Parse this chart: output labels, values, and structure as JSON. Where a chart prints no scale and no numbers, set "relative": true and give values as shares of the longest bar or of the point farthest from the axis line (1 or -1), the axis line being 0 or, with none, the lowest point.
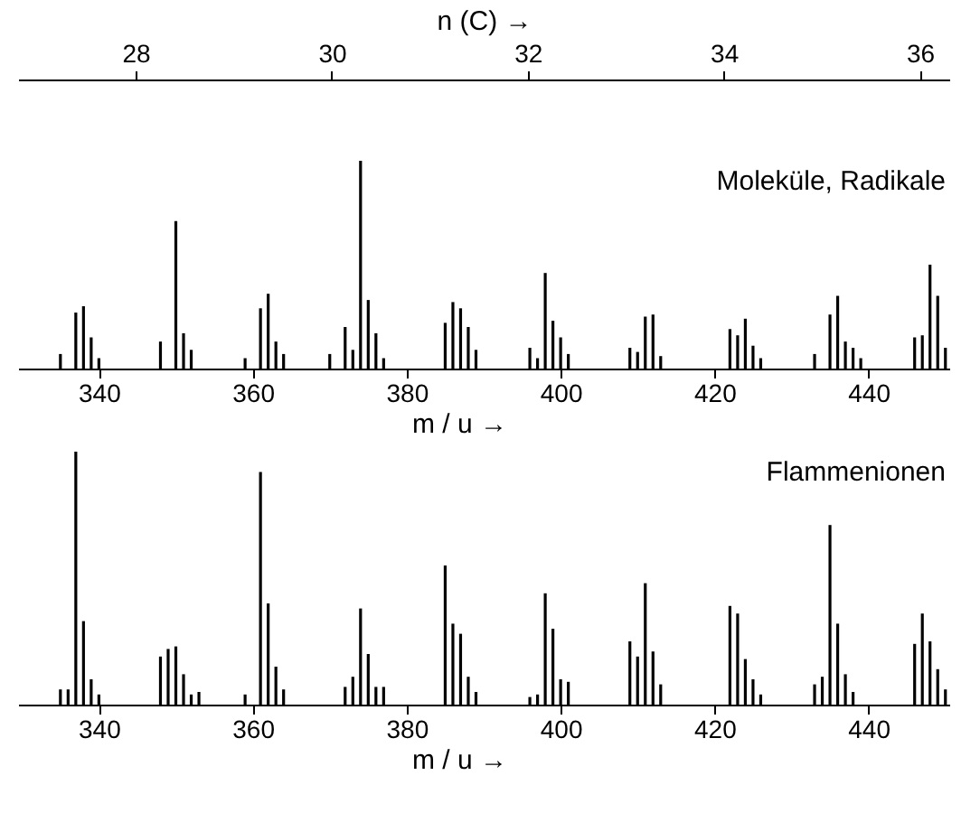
{
  "chart_data": [
    {
      "type": "bar",
      "relative": true,
      "xlabel": "m / u →",
      "x2label": "n (C) →",
      "xlim": [
        329.5,
        450.5
      ],
      "xticks": [
        340,
        360,
        380,
        400,
        420,
        440
      ],
      "x2lim": [
        26.8,
        36.3
      ],
      "x2ticks": [
        28,
        30,
        32,
        34,
        36
      ],
      "grid": false,
      "tick_labels": "x",
      "annotations": [
        "Moleküle, Radikale"
      ],
      "x": [
        335,
        337,
        338,
        339,
        340,
        348,
        350,
        351,
        352,
        359,
        361,
        362,
        363,
        364,
        370,
        372,
        373,
        374,
        375,
        376,
        377,
        385,
        386,
        387,
        388,
        389,
        396,
        397,
        398,
        399,
        400,
        401,
        409,
        410,
        411,
        412,
        413,
        422,
        423,
        424,
        425,
        426,
        433,
        435,
        436,
        437,
        438,
        439,
        446,
        447,
        448,
        449,
        450
      ],
      "series": [
        {
          "color": "#000000",
          "values": [
            0.07,
            0.27,
            0.3,
            0.15,
            0.05,
            0.13,
            0.71,
            0.17,
            0.09,
            0.05,
            0.29,
            0.36,
            0.13,
            0.07,
            0.07,
            0.2,
            0.09,
            1,
            0.33,
            0.17,
            0.05,
            0.22,
            0.32,
            0.29,
            0.2,
            0.09,
            0.1,
            0.05,
            0.46,
            0.23,
            0.15,
            0.07,
            0.1,
            0.08,
            0.25,
            0.26,
            0.06,
            0.19,
            0.16,
            0.24,
            0.11,
            0.05,
            0.07,
            0.26,
            0.35,
            0.13,
            0.1,
            0.05,
            0.15,
            0.16,
            0.5,
            0.35,
            0.1
          ]
        }
      ]
    },
    {
      "type": "bar",
      "relative": true,
      "xlabel": "m / u →",
      "xlim": [
        329.5,
        450.5
      ],
      "xticks": [
        340,
        360,
        380,
        400,
        420,
        440
      ],
      "grid": false,
      "tick_labels": "x",
      "annotations": [
        "Flammenionen"
      ],
      "x": [
        335,
        336,
        337,
        338,
        339,
        340,
        348,
        349,
        350,
        351,
        352,
        353,
        359,
        361,
        362,
        363,
        364,
        372,
        373,
        374,
        375,
        376,
        377,
        385,
        386,
        387,
        388,
        389,
        396,
        397,
        398,
        399,
        400,
        401,
        409,
        410,
        411,
        412,
        413,
        422,
        423,
        424,
        425,
        426,
        433,
        434,
        435,
        436,
        437,
        438,
        446,
        447,
        448,
        449,
        450
      ],
      "series": [
        {
          "color": "#000000",
          "values": [
            0.06,
            0.06,
            1,
            0.33,
            0.1,
            0.04,
            0.19,
            0.22,
            0.23,
            0.12,
            0.04,
            0.05,
            0.04,
            0.92,
            0.4,
            0.15,
            0.06,
            0.07,
            0.11,
            0.38,
            0.2,
            0.07,
            0.07,
            0.55,
            0.32,
            0.28,
            0.11,
            0.05,
            0.03,
            0.04,
            0.44,
            0.3,
            0.1,
            0.09,
            0.25,
            0.19,
            0.48,
            0.21,
            0.08,
            0.39,
            0.36,
            0.18,
            0.1,
            0.04,
            0.08,
            0.11,
            0.71,
            0.32,
            0.12,
            0.05,
            0.24,
            0.36,
            0.25,
            0.14,
            0.06
          ]
        }
      ]
    }
  ]
}
